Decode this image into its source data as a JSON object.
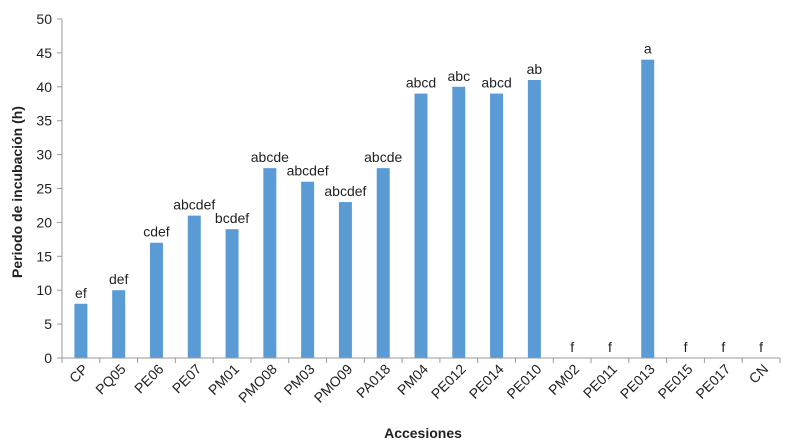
{
  "chart_data": {
    "type": "bar",
    "xlabel": "Accesiones",
    "ylabel": "Periodo de incubación (h)",
    "ylim": [
      0,
      50
    ],
    "yticks": [
      0,
      5,
      10,
      15,
      20,
      25,
      30,
      35,
      40,
      45,
      50
    ],
    "grid": false,
    "bar_color": "#5B9BD5",
    "categories": [
      "CP",
      "PQ05",
      "PE06",
      "PE07",
      "PM01",
      "PMO08",
      "PM03",
      "PMO09",
      "PA018",
      "PM04",
      "PE012",
      "PE014",
      "PE010",
      "PM02",
      "PE011",
      "PE013",
      "PE015",
      "PE017",
      "CN"
    ],
    "values": [
      8,
      10,
      17,
      21,
      19,
      28,
      26,
      23,
      28,
      39,
      40,
      39,
      41,
      0,
      0,
      44,
      0,
      0,
      0
    ],
    "labels": [
      "ef",
      "def",
      "cdef",
      "abcdef",
      "bcdef",
      "abcde",
      "abcdef",
      "abcdef",
      "abcde",
      "abcd",
      "abc",
      "abcd",
      "ab",
      "f",
      "f",
      "a",
      "f",
      "f",
      "f"
    ]
  }
}
